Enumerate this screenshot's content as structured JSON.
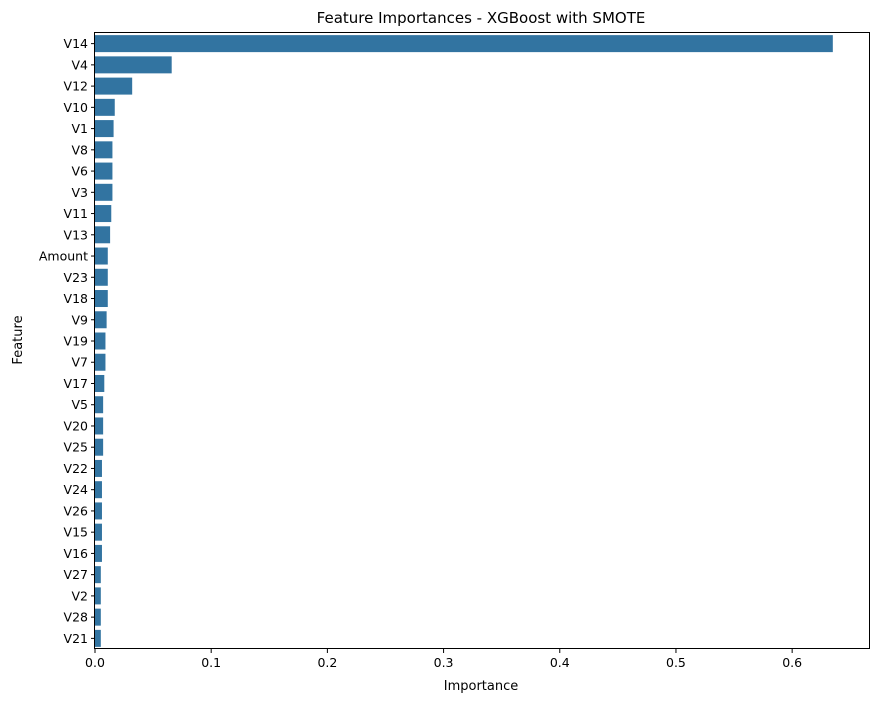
{
  "chart_data": {
    "type": "bar",
    "orientation": "horizontal",
    "title": "Feature Importances - XGBoost with SMOTE",
    "xlabel": "Importance",
    "ylabel": "Feature",
    "bar_color": "#3274a1",
    "xlim": [
      0,
      0.667
    ],
    "xticks": [
      0.0,
      0.1,
      0.2,
      0.3,
      0.4,
      0.5,
      0.6
    ],
    "xtick_labels": [
      "0.0",
      "0.1",
      "0.2",
      "0.3",
      "0.4",
      "0.5",
      "0.6"
    ],
    "grid": false,
    "legend": "none",
    "categories": [
      "V14",
      "V4",
      "V12",
      "V10",
      "V1",
      "V8",
      "V6",
      "V3",
      "V11",
      "V13",
      "Amount",
      "V23",
      "V18",
      "V9",
      "V19",
      "V7",
      "V17",
      "V5",
      "V20",
      "V25",
      "V22",
      "V24",
      "V26",
      "V15",
      "V16",
      "V27",
      "V2",
      "V28",
      "V21"
    ],
    "values": [
      0.635,
      0.066,
      0.032,
      0.017,
      0.016,
      0.015,
      0.015,
      0.015,
      0.014,
      0.013,
      0.011,
      0.011,
      0.011,
      0.01,
      0.009,
      0.009,
      0.008,
      0.007,
      0.007,
      0.007,
      0.006,
      0.006,
      0.006,
      0.006,
      0.006,
      0.005,
      0.005,
      0.005,
      0.005
    ]
  }
}
